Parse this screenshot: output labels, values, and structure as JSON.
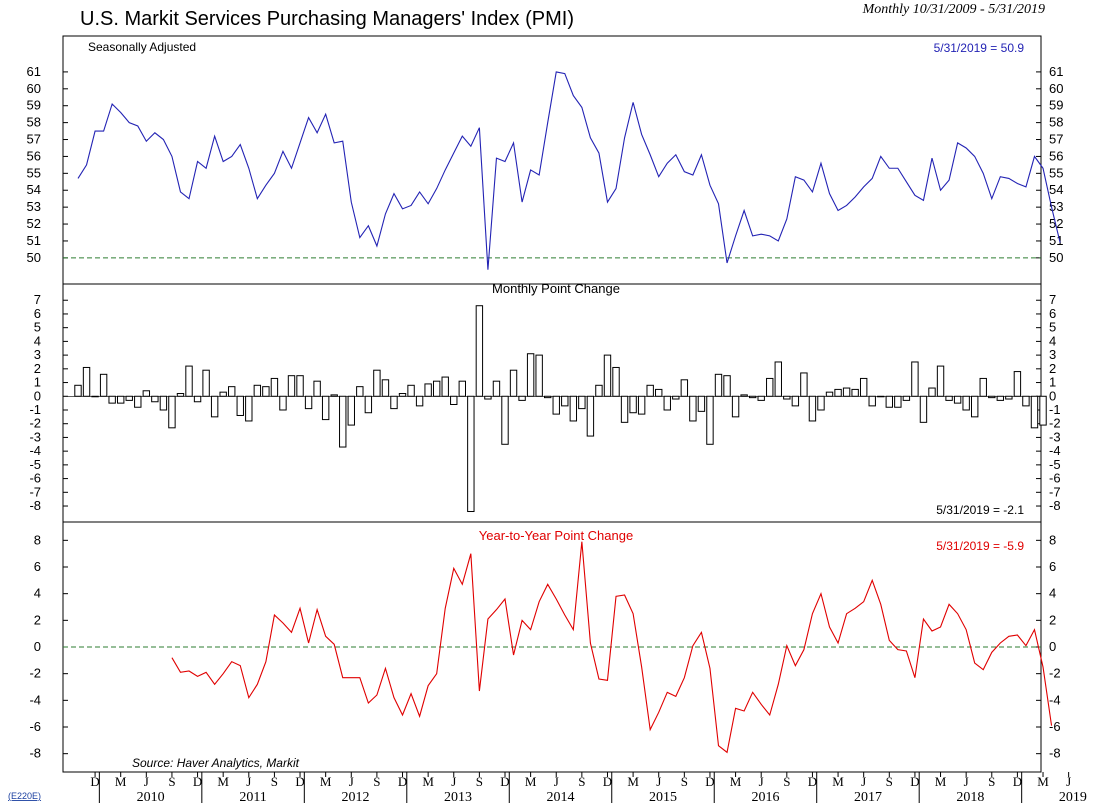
{
  "title": "U.S. Markit Services Purchasing Managers' Index (PMI)",
  "subtitle": "Monthly 10/31/2009 - 5/31/2019",
  "source": "Source: Haver Analytics, Markit",
  "code": "(E220E)",
  "colors": {
    "level": "#2323b4",
    "change": "#000000",
    "yoy": "#e00000",
    "reference": "#2e7d32"
  },
  "x_axis": {
    "start_year": 2009,
    "start_month": 10,
    "month_labels": [
      "D",
      "M",
      "J",
      "S",
      "D",
      "M",
      "J",
      "S",
      "D",
      "M",
      "J",
      "S",
      "D",
      "M",
      "J",
      "S",
      "D",
      "M",
      "J",
      "S",
      "D",
      "M",
      "J",
      "S",
      "D",
      "M",
      "J",
      "S",
      "D",
      "M",
      "J",
      "S",
      "D",
      "M",
      "J",
      "S",
      "D",
      "M",
      "J",
      "S",
      "D",
      "M"
    ],
    "years": [
      "2010",
      "2011",
      "2012",
      "2013",
      "2014",
      "2015",
      "2016",
      "2017",
      "2018",
      "2019"
    ]
  },
  "chart_data": [
    {
      "type": "line",
      "title": "",
      "annotation_left": "Seasonally Adjusted",
      "annotation_right": "5/31/2019 = 50.9",
      "ylim": [
        49.4,
        62.0
      ],
      "yticks": [
        50,
        51,
        52,
        53,
        54,
        55,
        56,
        57,
        58,
        59,
        60,
        61
      ],
      "reference_line": 50,
      "series": [
        {
          "values": [
            54.7,
            55.5,
            57.5,
            57.5,
            59.1,
            58.6,
            58.0,
            57.8,
            56.9,
            57.4,
            57.0,
            56.0,
            53.9,
            53.5,
            55.7,
            55.3,
            57.2,
            55.7,
            56.0,
            56.7,
            55.3,
            53.5,
            54.3,
            55.0,
            56.3,
            55.3,
            56.8,
            58.3,
            57.4,
            58.5,
            56.8,
            56.9,
            53.3,
            51.2,
            51.9,
            50.7,
            52.6,
            53.8,
            52.9,
            53.1,
            53.9,
            53.2,
            54.1,
            55.2,
            56.2,
            57.2,
            56.6,
            57.7,
            49.3,
            55.9,
            55.7,
            56.8,
            53.3,
            55.2,
            54.9,
            58.0,
            61.0,
            60.9,
            59.6,
            58.9,
            57.1,
            56.2,
            53.3,
            54.1,
            57.1,
            59.2,
            57.3,
            56.1,
            54.8,
            55.6,
            56.1,
            55.1,
            54.9,
            56.1,
            54.3,
            53.2,
            49.7,
            51.3,
            52.8,
            51.3,
            51.4,
            51.3,
            51.0,
            52.3,
            54.8,
            54.6,
            53.9,
            55.6,
            53.8,
            52.8,
            53.1,
            53.6,
            54.2,
            54.7,
            56.0,
            55.3,
            55.3,
            54.5,
            53.7,
            53.4,
            55.9,
            54.0,
            54.6,
            56.8,
            56.5,
            56.0,
            55.0,
            53.5,
            54.8,
            54.7,
            54.4,
            54.2,
            56.0,
            55.3,
            53.0,
            50.9
          ]
        }
      ]
    },
    {
      "type": "bar",
      "title": "Monthly Point Change",
      "annotation_right": "5/31/2019 = -2.1",
      "ylim": [
        -8.8,
        7.6
      ],
      "yticks": [
        -8,
        -7,
        -6,
        -5,
        -4,
        -3,
        -2,
        -1,
        0,
        1,
        2,
        3,
        4,
        5,
        6,
        7
      ],
      "series": [
        {
          "values": [
            0.8,
            2.1,
            0.0,
            1.6,
            -0.5,
            -0.5,
            -0.3,
            -0.8,
            0.4,
            -0.4,
            -1.0,
            -2.3,
            0.2,
            2.2,
            -0.4,
            1.9,
            -1.5,
            0.3,
            0.7,
            -1.4,
            -1.8,
            0.8,
            0.7,
            1.3,
            -1.0,
            1.5,
            1.5,
            -0.9,
            1.1,
            -1.7,
            0.1,
            -3.7,
            -2.1,
            0.7,
            -1.2,
            1.9,
            1.2,
            -0.9,
            0.2,
            0.8,
            -0.7,
            0.9,
            1.1,
            1.4,
            -0.6,
            1.1,
            -8.4,
            6.6,
            -0.2,
            1.1,
            -3.5,
            1.9,
            -0.3,
            3.1,
            3.0,
            -0.1,
            -1.3,
            -0.7,
            -1.8,
            -0.9,
            -2.9,
            0.8,
            3.0,
            2.1,
            -1.9,
            -1.2,
            -1.3,
            0.8,
            0.5,
            -1.0,
            -0.2,
            1.2,
            -1.8,
            -1.1,
            -3.5,
            1.6,
            1.5,
            -1.5,
            0.1,
            -0.1,
            -0.3,
            1.3,
            2.5,
            -0.2,
            -0.7,
            1.7,
            -1.8,
            -1.0,
            0.3,
            0.5,
            0.6,
            0.5,
            1.3,
            -0.7,
            0.0,
            -0.8,
            -0.8,
            -0.3,
            2.5,
            -1.9,
            0.6,
            2.2,
            -0.3,
            -0.5,
            -1.0,
            -1.5,
            1.3,
            -0.1,
            -0.3,
            -0.2,
            1.8,
            -0.7,
            -2.3,
            -2.1
          ]
        }
      ]
    },
    {
      "type": "line",
      "title": "Year-to-Year Point Change",
      "annotation_right": "5/31/2019 = -5.9",
      "annotation_left": "",
      "ylim": [
        -9.0,
        9.0
      ],
      "yticks": [
        -8,
        -6,
        -4,
        -2,
        0,
        2,
        4,
        6,
        8
      ],
      "reference_line": 0,
      "series": [
        {
          "start_index": 11,
          "values": [
            -0.8,
            -1.9,
            -1.8,
            -2.2,
            -1.9,
            -2.8,
            -2.0,
            -1.1,
            -1.4,
            -3.8,
            -2.8,
            -1.1,
            2.4,
            1.8,
            1.1,
            2.9,
            0.3,
            2.8,
            0.8,
            0.2,
            -2.3,
            -2.3,
            -2.3,
            -4.2,
            -3.6,
            -1.6,
            -3.8,
            -5.1,
            -3.5,
            -5.2,
            -2.9,
            -2.0,
            2.9,
            5.9,
            4.7,
            7.0,
            -3.3,
            2.1,
            2.8,
            3.6,
            -0.6,
            2.0,
            1.3,
            3.4,
            4.7,
            3.6,
            2.4,
            1.3,
            7.9,
            0.3,
            -2.4,
            -2.5,
            3.8,
            3.9,
            2.5,
            -1.5,
            -6.2,
            -4.9,
            -3.4,
            -3.7,
            -2.3,
            0.1,
            1.1,
            -1.6,
            -7.4,
            -7.9,
            -4.6,
            -4.8,
            -3.4,
            -4.3,
            -5.1,
            -2.8,
            0.1,
            -1.4,
            -0.2,
            2.5,
            4.0,
            1.5,
            0.3,
            2.5,
            2.9,
            3.4,
            5.0,
            3.2,
            0.5,
            -0.2,
            -0.3,
            -2.3,
            2.1,
            1.2,
            1.5,
            3.2,
            2.5,
            1.3,
            -1.2,
            -1.7,
            -0.4,
            0.3,
            0.8,
            0.9,
            0.1,
            1.3,
            -1.5,
            -5.9
          ]
        }
      ]
    }
  ]
}
